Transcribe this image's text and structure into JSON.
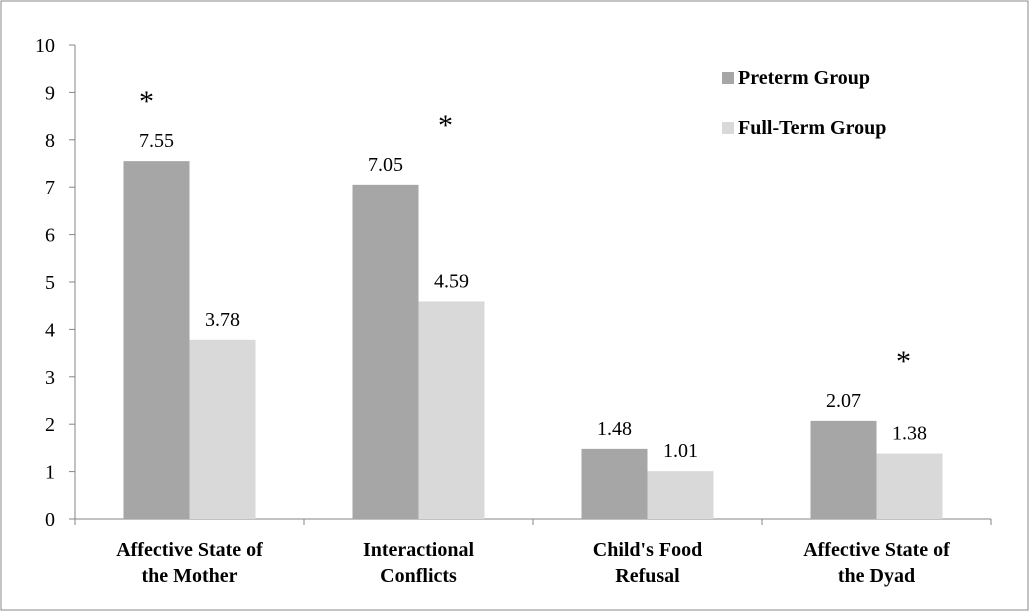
{
  "chart_data": {
    "type": "bar",
    "categories": [
      "Affective State of\nthe Mother",
      "Interactional\nConflicts",
      "Child's Food\nRefusal",
      "Affective State of\nthe Dyad"
    ],
    "series": [
      {
        "name": "Preterm Group",
        "color": "#a6a6a6",
        "values": [
          7.55,
          7.05,
          1.48,
          2.07
        ]
      },
      {
        "name": "Full-Term Group",
        "color": "#d9d9d9",
        "values": [
          3.78,
          4.59,
          1.01,
          1.38
        ]
      }
    ],
    "annotations": [
      "*",
      "*",
      null,
      "*"
    ],
    "ylim": [
      0,
      10
    ],
    "yticks": [
      0,
      1,
      2,
      3,
      4,
      5,
      6,
      7,
      8,
      9,
      10
    ],
    "legend": "top-right"
  }
}
